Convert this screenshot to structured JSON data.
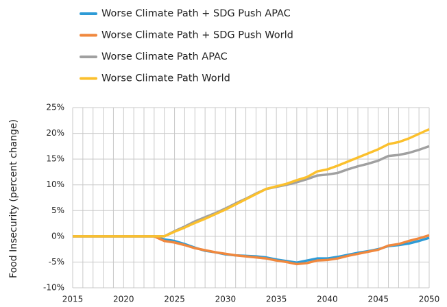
{
  "chart_data": {
    "type": "line",
    "y_label": "Food Insecurity (percent change)",
    "x": [
      2015,
      2016,
      2017,
      2018,
      2019,
      2020,
      2021,
      2022,
      2023,
      2024,
      2025,
      2026,
      2027,
      2028,
      2029,
      2030,
      2031,
      2032,
      2033,
      2034,
      2035,
      2036,
      2037,
      2038,
      2039,
      2040,
      2041,
      2042,
      2043,
      2044,
      2045,
      2046,
      2047,
      2048,
      2049,
      2050
    ],
    "series": [
      {
        "name": "Worse Climate Path + SDG Push APAC",
        "color": "#2e9bd6",
        "values": [
          0,
          0,
          0,
          0,
          0,
          0,
          0,
          0,
          0,
          -0.6,
          -0.9,
          -1.5,
          -2.2,
          -2.8,
          -3.1,
          -3.5,
          -3.7,
          -3.8,
          -3.9,
          -4.1,
          -4.5,
          -4.8,
          -5.1,
          -4.7,
          -4.3,
          -4.3,
          -4.0,
          -3.6,
          -3.2,
          -2.9,
          -2.5,
          -1.9,
          -1.7,
          -1.4,
          -0.9,
          -0.3
        ]
      },
      {
        "name": "Worse Climate Path + SDG Push World",
        "color": "#f0883e",
        "values": [
          0,
          0,
          0,
          0,
          0,
          0,
          0,
          0,
          0,
          -0.9,
          -1.2,
          -1.7,
          -2.3,
          -2.7,
          -3.1,
          -3.4,
          -3.7,
          -3.9,
          -4.1,
          -4.3,
          -4.7,
          -5.0,
          -5.4,
          -5.2,
          -4.7,
          -4.6,
          -4.3,
          -3.8,
          -3.4,
          -3.0,
          -2.6,
          -1.8,
          -1.5,
          -0.9,
          -0.4,
          0.2
        ]
      },
      {
        "name": "Worse Climate Path APAC",
        "color": "#a0a0a0",
        "values": [
          0,
          0,
          0,
          0,
          0,
          0,
          0,
          0,
          0,
          0,
          1.0,
          1.9,
          2.9,
          3.7,
          4.5,
          5.4,
          6.4,
          7.3,
          8.3,
          9.2,
          9.6,
          10.0,
          10.5,
          11.1,
          11.8,
          12.0,
          12.3,
          13.0,
          13.6,
          14.1,
          14.7,
          15.6,
          15.8,
          16.2,
          16.8,
          17.5
        ]
      },
      {
        "name": "Worse Climate Path World",
        "color": "#fbc02d",
        "values": [
          0,
          0,
          0,
          0,
          0,
          0,
          0,
          0,
          0,
          0,
          0.9,
          1.7,
          2.6,
          3.4,
          4.3,
          5.2,
          6.2,
          7.2,
          8.2,
          9.2,
          9.7,
          10.2,
          10.9,
          11.5,
          12.6,
          13.0,
          13.7,
          14.5,
          15.3,
          16.1,
          16.9,
          17.9,
          18.3,
          19.0,
          19.9,
          20.8
        ]
      }
    ],
    "xlim": [
      2015,
      2050
    ],
    "xticks": [
      2015,
      2020,
      2025,
      2030,
      2035,
      2040,
      2045,
      2050
    ],
    "ylim": [
      -10,
      25
    ],
    "yticks": [
      {
        "value": -10,
        "label": "-10%"
      },
      {
        "value": -5,
        "label": "-5%"
      },
      {
        "value": 0,
        "label": "0%"
      },
      {
        "value": 5,
        "label": "5%"
      },
      {
        "value": 10,
        "label": "10%"
      },
      {
        "value": 15,
        "label": "15%"
      },
      {
        "value": 20,
        "label": "20%"
      },
      {
        "value": 25,
        "label": "25%"
      }
    ],
    "grid": true,
    "legend": "top"
  }
}
